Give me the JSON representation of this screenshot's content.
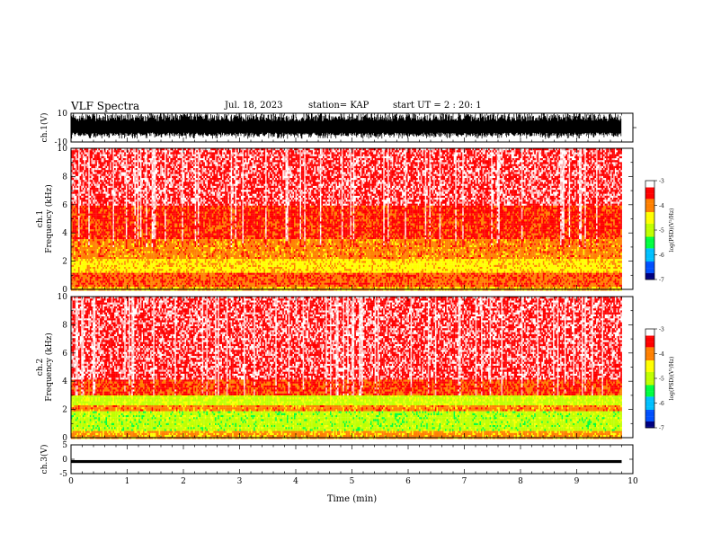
{
  "header": {
    "title": "VLF Spectra",
    "date": "Jul. 18, 2023",
    "station": "station= KAP",
    "start": "start UT = 2 : 20: 1"
  },
  "chart_data": [
    {
      "type": "line",
      "panel": "ch1-waveform",
      "ylabel": "ch.1(V)",
      "ylim": [
        -10,
        10
      ],
      "yticks": [
        "10",
        "-10"
      ],
      "xlim": [
        0,
        10
      ],
      "x_extent_min": [
        0,
        9.8
      ],
      "description_values": {
        "amplitude_range_v": [
          -10,
          10
        ],
        "typical_min_v": -6
      }
    },
    {
      "type": "heatmap",
      "panel": "ch1-spectrogram",
      "ylabel": "ch.1 Frequency (kHz)",
      "ylim": [
        0,
        10
      ],
      "yticks": [
        "0",
        "2",
        "4",
        "6",
        "8",
        "10"
      ],
      "xlim": [
        0,
        10
      ],
      "x_extent_min": [
        0,
        9.8
      ],
      "colorbar": {
        "label": "log(PSD)(V²/Hz)",
        "range": [
          -7,
          -3
        ],
        "ticks": [
          "-3",
          "-4",
          "-5",
          "-6",
          "-7"
        ]
      },
      "bands": [
        {
          "freq_khz": [
            0.0,
            0.3
          ],
          "level": -4.2
        },
        {
          "freq_khz": [
            0.3,
            1.2
          ],
          "level": -3.8
        },
        {
          "freq_khz": [
            1.2,
            2.2
          ],
          "level": -4.4
        },
        {
          "freq_khz": [
            2.2,
            3.6
          ],
          "level": -4.0
        },
        {
          "freq_khz": [
            3.6,
            6.0
          ],
          "level": -3.6
        },
        {
          "freq_khz": [
            6.0,
            10.0
          ],
          "level": -3.3
        }
      ]
    },
    {
      "type": "heatmap",
      "panel": "ch2-spectrogram",
      "ylabel": "ch.2 Frequency (kHz)",
      "ylim": [
        0,
        10
      ],
      "yticks": [
        "0",
        "2",
        "4",
        "6",
        "8",
        "10"
      ],
      "xlim": [
        0,
        10
      ],
      "x_extent_min": [
        0,
        9.8
      ],
      "colorbar": {
        "label": "log(PSD)(V²/Hz)",
        "range": [
          -7,
          -3
        ],
        "ticks": [
          "-3",
          "-4",
          "-5",
          "-6",
          "-7"
        ]
      },
      "bands": [
        {
          "freq_khz": [
            0.0,
            0.6
          ],
          "level": -4.1
        },
        {
          "freq_khz": [
            0.6,
            1.9
          ],
          "level": -5.0
        },
        {
          "freq_khz": [
            1.9,
            2.3
          ],
          "level": -4.0
        },
        {
          "freq_khz": [
            2.3,
            3.0
          ],
          "level": -4.9
        },
        {
          "freq_khz": [
            3.0,
            4.2
          ],
          "level": -3.7
        },
        {
          "freq_khz": [
            4.2,
            10.0
          ],
          "level": -3.3
        }
      ]
    },
    {
      "type": "line",
      "panel": "ch3-waveform",
      "ylabel": "ch.3(V)",
      "ylim": [
        -5,
        5
      ],
      "yticks": [
        "5",
        "0",
        "-5"
      ],
      "xlim": [
        0,
        10
      ],
      "x_extent_min": [
        0,
        9.8
      ],
      "description_values": {
        "amplitude_range_v": [
          -1.3,
          -0.3
        ]
      },
      "xlabel": "Time (min)",
      "xticks": [
        "0",
        "1",
        "2",
        "3",
        "4",
        "5",
        "6",
        "7",
        "8",
        "9",
        "10"
      ]
    }
  ],
  "colors": {
    "colormap": [
      "#000080",
      "#0050ff",
      "#00c0ff",
      "#00ff40",
      "#c0ff00",
      "#ffff00",
      "#ff8000",
      "#ff0000",
      "#ffffff"
    ]
  }
}
